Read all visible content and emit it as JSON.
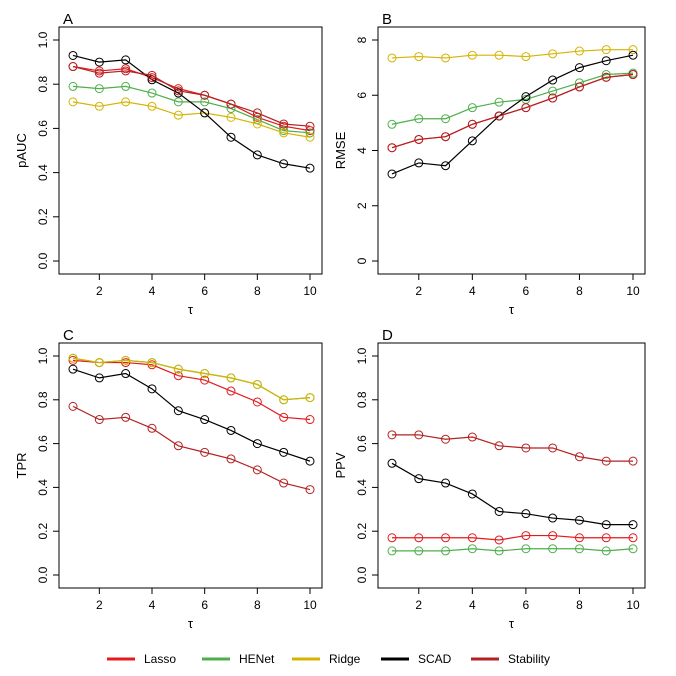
{
  "legend": [
    {
      "name": "Lasso",
      "color": "#e41a1c"
    },
    {
      "name": "HENet",
      "color": "#4daf4a"
    },
    {
      "name": "Ridge",
      "color": "#d4b400"
    },
    {
      "name": "SCAD",
      "color": "#000000"
    },
    {
      "name": "Stability",
      "color": "#b22222"
    }
  ],
  "chart_data": [
    {
      "type": "line",
      "panel": "A",
      "xlabel": "τ",
      "ylabel": "pAUC",
      "x": [
        1,
        2,
        3,
        4,
        5,
        6,
        7,
        8,
        9,
        10
      ],
      "xticks": [
        2,
        4,
        6,
        8,
        10
      ],
      "yticks": [
        "0.0",
        "0.2",
        "0.4",
        "0.6",
        "0.8",
        "1.0"
      ],
      "ylim": [
        0,
        1.0
      ],
      "xlim": [
        1,
        10
      ],
      "series": [
        {
          "name": "Lasso",
          "values": [
            0.88,
            0.86,
            0.87,
            0.83,
            0.78,
            0.75,
            0.71,
            0.65,
            0.61,
            0.59
          ]
        },
        {
          "name": "HENet",
          "values": [
            0.79,
            0.78,
            0.79,
            0.76,
            0.72,
            0.72,
            0.69,
            0.64,
            0.59,
            0.58
          ]
        },
        {
          "name": "Ridge",
          "values": [
            0.72,
            0.7,
            0.72,
            0.7,
            0.66,
            0.67,
            0.65,
            0.62,
            0.58,
            0.56
          ]
        },
        {
          "name": "SCAD",
          "values": [
            0.93,
            0.9,
            0.91,
            0.82,
            0.76,
            0.67,
            0.56,
            0.48,
            0.44,
            0.42
          ]
        },
        {
          "name": "Stability",
          "values": [
            0.88,
            0.85,
            0.86,
            0.84,
            0.77,
            0.75,
            0.71,
            0.67,
            0.62,
            0.61
          ]
        }
      ]
    },
    {
      "type": "line",
      "panel": "B",
      "xlabel": "τ",
      "ylabel": "RMSE",
      "x": [
        1,
        2,
        3,
        4,
        5,
        6,
        7,
        8,
        9,
        10
      ],
      "xticks": [
        2,
        4,
        6,
        8,
        10
      ],
      "yticks": [
        "0",
        "2",
        "4",
        "6",
        "8"
      ],
      "ylim": [
        0,
        8
      ],
      "xlim": [
        1,
        10
      ],
      "series": [
        {
          "name": "Lasso",
          "values": [
            4.1,
            4.4,
            4.5,
            4.95,
            5.25,
            5.55,
            5.9,
            6.3,
            6.65,
            6.75
          ]
        },
        {
          "name": "HENet",
          "values": [
            4.95,
            5.15,
            5.15,
            5.55,
            5.75,
            5.85,
            6.15,
            6.45,
            6.75,
            6.8
          ]
        },
        {
          "name": "Ridge",
          "values": [
            7.35,
            7.4,
            7.35,
            7.45,
            7.45,
            7.4,
            7.5,
            7.6,
            7.65,
            7.65
          ]
        },
        {
          "name": "SCAD",
          "values": [
            3.15,
            3.55,
            3.45,
            4.35,
            5.25,
            5.95,
            6.55,
            7.0,
            7.25,
            7.45
          ]
        },
        {
          "name": "Stability",
          "values": [
            4.1,
            4.4,
            4.5,
            4.95,
            5.25,
            5.55,
            5.9,
            6.3,
            6.65,
            6.75
          ]
        }
      ]
    },
    {
      "type": "line",
      "panel": "C",
      "xlabel": "τ",
      "ylabel": "TPR",
      "x": [
        1,
        2,
        3,
        4,
        5,
        6,
        7,
        8,
        9,
        10
      ],
      "xticks": [
        2,
        4,
        6,
        8,
        10
      ],
      "yticks": [
        "0.0",
        "0.2",
        "0.4",
        "0.6",
        "0.8",
        "1.0"
      ],
      "ylim": [
        0,
        1.0
      ],
      "xlim": [
        1,
        10
      ],
      "series": [
        {
          "name": "Lasso",
          "values": [
            0.98,
            0.97,
            0.97,
            0.96,
            0.91,
            0.89,
            0.84,
            0.79,
            0.72,
            0.71
          ]
        },
        {
          "name": "HENet",
          "values": [
            0.99,
            0.97,
            0.98,
            0.97,
            0.94,
            0.92,
            0.9,
            0.87,
            0.8,
            0.81
          ]
        },
        {
          "name": "Ridge",
          "values": [
            0.99,
            0.97,
            0.98,
            0.97,
            0.94,
            0.92,
            0.9,
            0.87,
            0.8,
            0.81
          ]
        },
        {
          "name": "SCAD",
          "values": [
            0.94,
            0.9,
            0.92,
            0.85,
            0.75,
            0.71,
            0.66,
            0.6,
            0.56,
            0.52
          ]
        },
        {
          "name": "Stability",
          "values": [
            0.77,
            0.71,
            0.72,
            0.67,
            0.59,
            0.56,
            0.53,
            0.48,
            0.42,
            0.39
          ]
        }
      ]
    },
    {
      "type": "line",
      "panel": "D",
      "xlabel": "τ",
      "ylabel": "PPV",
      "x": [
        1,
        2,
        3,
        4,
        5,
        6,
        7,
        8,
        9,
        10
      ],
      "xticks": [
        2,
        4,
        6,
        8,
        10
      ],
      "yticks": [
        "0.0",
        "0.2",
        "0.4",
        "0.6",
        "0.8",
        "1.0"
      ],
      "ylim": [
        0,
        1.0
      ],
      "xlim": [
        1,
        10
      ],
      "series": [
        {
          "name": "Lasso",
          "values": [
            0.17,
            0.17,
            0.17,
            0.17,
            0.16,
            0.18,
            0.18,
            0.17,
            0.17,
            0.17
          ]
        },
        {
          "name": "HENet",
          "values": [
            0.11,
            0.11,
            0.11,
            0.12,
            0.11,
            0.12,
            0.12,
            0.12,
            0.11,
            0.12
          ]
        },
        {
          "name": "SCAD",
          "values": [
            0.51,
            0.44,
            0.42,
            0.37,
            0.29,
            0.28,
            0.26,
            0.25,
            0.23,
            0.23
          ]
        },
        {
          "name": "Stability",
          "values": [
            0.64,
            0.64,
            0.62,
            0.63,
            0.59,
            0.58,
            0.58,
            0.54,
            0.52,
            0.52
          ]
        }
      ]
    }
  ]
}
